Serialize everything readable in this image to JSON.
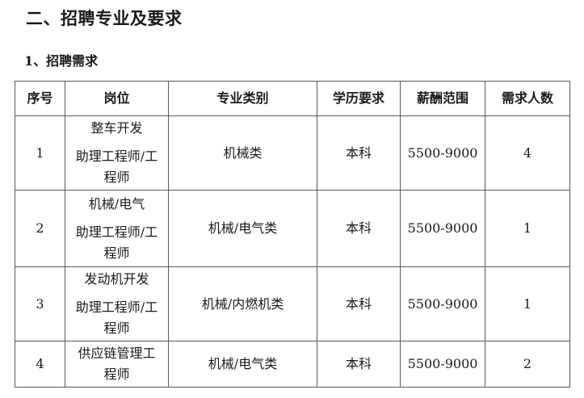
{
  "page": {
    "section_title": "二、招聘专业及要求",
    "subsection_title": "1、招聘需求"
  },
  "table": {
    "headers": [
      "序号",
      "岗位",
      "专业类别",
      "学历要求",
      "薪酬范围",
      "需求人数"
    ],
    "rows": [
      {
        "no": "1",
        "position_line1": "整车开发",
        "position_line2": "助理工程师/工程师",
        "major": "机械类",
        "education": "本科",
        "salary": "5500-9000",
        "headcount": "4"
      },
      {
        "no": "2",
        "position_line1": "机械/电气",
        "position_line2": "助理工程师/工程师",
        "major": "机械/电气类",
        "education": "本科",
        "salary": "5500-9000",
        "headcount": "1"
      },
      {
        "no": "3",
        "position_line1": "发动机开发",
        "position_line2": "助理工程师/工程师",
        "major": "机械/内燃机类",
        "education": "本科",
        "salary": "5500-9000",
        "headcount": "1"
      },
      {
        "no": "4",
        "position_line1": "供应链管理工程师",
        "position_line2": "",
        "major": "机械/电气类",
        "education": "本科",
        "salary": "5500-9000",
        "headcount": "2"
      }
    ]
  },
  "colors": {
    "text": "#1a1a1a",
    "border": "#595959",
    "background": "#ffffff"
  }
}
